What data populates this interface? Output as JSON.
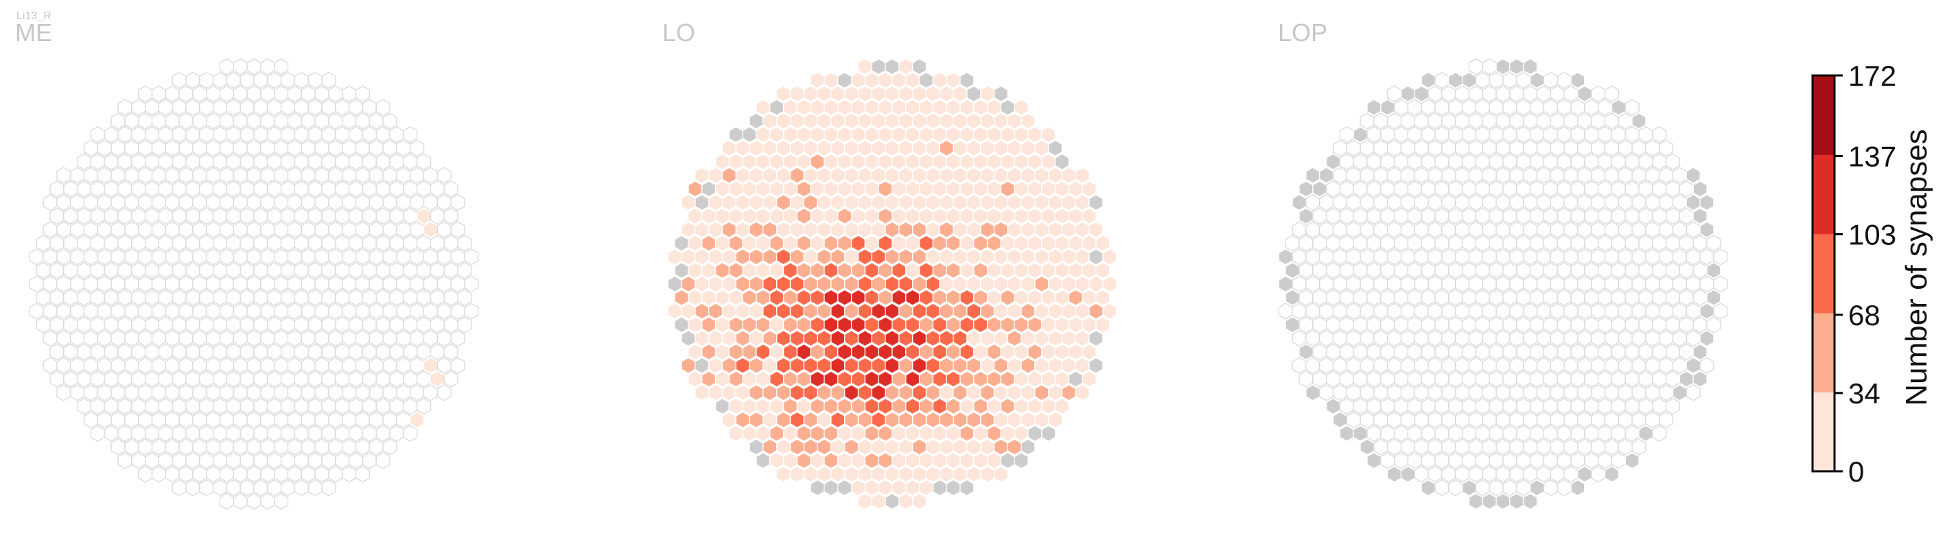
{
  "chart_data": {
    "type": "heatmap",
    "title": "Li13_R",
    "layout": "hexagonal columns",
    "panels": [
      {
        "label": "ME",
        "overall_level": "empty",
        "highlighted_columns": [
          {
            "row": 11,
            "col": 28,
            "value": 10
          },
          {
            "row": 12,
            "col": 29,
            "value": 10
          },
          {
            "row": 22,
            "col": 29,
            "value": 12
          },
          {
            "row": 23,
            "col": 29,
            "value": 10
          },
          {
            "row": 26,
            "col": 28,
            "value": 10
          }
        ]
      },
      {
        "label": "LO",
        "overall_level": "high"
      },
      {
        "label": "LOP",
        "overall_level": "empty"
      }
    ],
    "colorbar": {
      "label": "Number of synapses",
      "ticks": [
        0,
        34,
        68,
        103,
        137,
        172
      ],
      "range": [
        0,
        172
      ],
      "bins": 5,
      "colors": [
        "#fee5d9",
        "#fcae91",
        "#fb6a4a",
        "#de2d26",
        "#a50f15"
      ]
    },
    "colors": {
      "empty_fill": "#ffffff",
      "empty_stroke": "#d9d9d9",
      "missing_fill": "#cccccc",
      "hex_stroke": "#ffffff",
      "label": "#c7c7c7"
    }
  }
}
